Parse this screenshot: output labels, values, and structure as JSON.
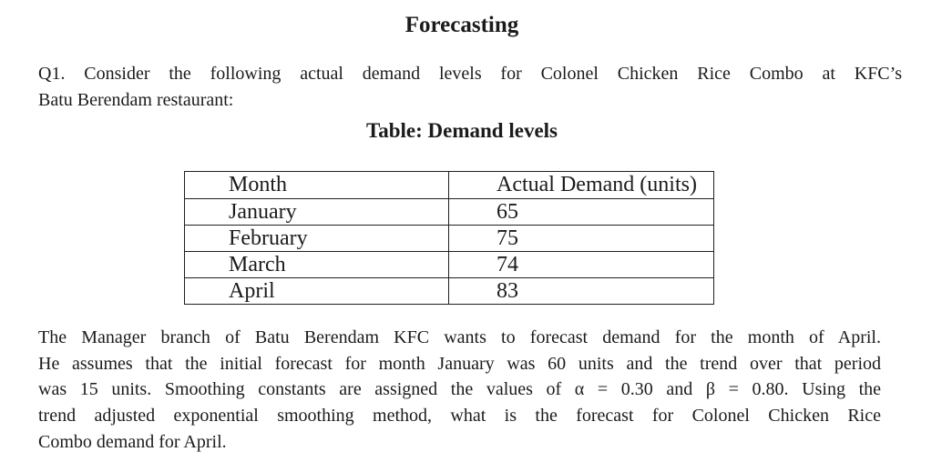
{
  "colors": {
    "background": "#ffffff",
    "text": "#1b1b1b",
    "table_border": "#1f1f1f"
  },
  "title": "Forecasting",
  "question": {
    "lines": [
      "Q1. Consider the following actual demand levels for Colonel Chicken Rice Combo at KFC’s",
      "Batu Berendam restaurant:"
    ]
  },
  "table_caption": "Table: Demand levels",
  "table": {
    "headers": [
      "Month",
      "Actual Demand (units)"
    ],
    "rows": [
      [
        "January",
        "65"
      ],
      [
        "February",
        "75"
      ],
      [
        "March",
        "74"
      ],
      [
        "April",
        "83"
      ]
    ]
  },
  "body": {
    "lines": [
      "The Manager branch of Batu Berendam KFC wants to forecast demand for the month of April.",
      "He assumes that the initial forecast for month January was 60 units and the trend over that period",
      "was 15 units. Smoothing constants are assigned the values of α = 0.30 and β = 0.80. Using the",
      "trend adjusted exponential smoothing method, what is the forecast for Colonel Chicken Rice",
      "Combo demand for April."
    ]
  }
}
